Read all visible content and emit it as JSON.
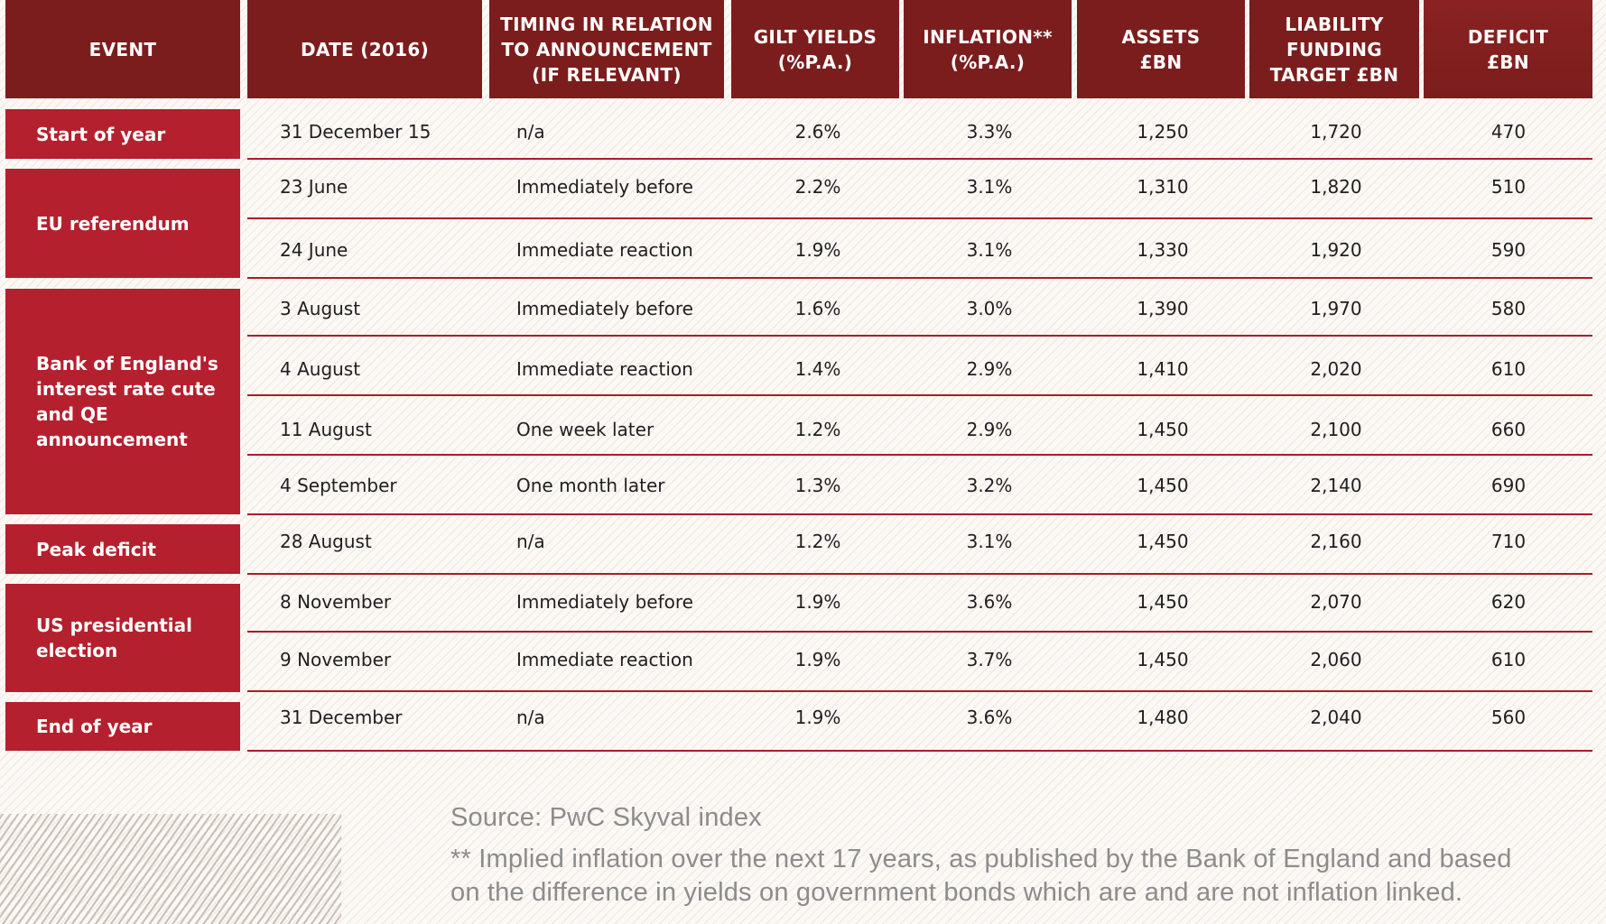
{
  "headers": {
    "event": "EVENT",
    "date": "DATE (2016)",
    "timing": "TIMING IN RELATION\nTO ANNOUNCEMENT\n(IF RELEVANT)",
    "gilt": "GILT YIELDS\n(%P.A.)",
    "inflation": "INFLATION**\n(%P.A.)",
    "assets": "ASSETS\n£BN",
    "liability": "LIABILITY\nFUNDING\nTARGET £BN",
    "deficit": "DEFICIT\n£BN"
  },
  "events": [
    {
      "label": "Start of year"
    },
    {
      "label": "EU referendum"
    },
    {
      "label": "Bank of England's interest rate cute and QE announcement"
    },
    {
      "label": "Peak deficit"
    },
    {
      "label": "US presidential election"
    },
    {
      "label": "End of year"
    }
  ],
  "rows": [
    {
      "date": "31 December 15",
      "timing": "n/a",
      "gilt": "2.6%",
      "inflation": "3.3%",
      "assets": "1,250",
      "liability": "1,720",
      "deficit": "470"
    },
    {
      "date": "23 June",
      "timing": "Immediately before",
      "gilt": "2.2%",
      "inflation": "3.1%",
      "assets": "1,310",
      "liability": "1,820",
      "deficit": "510"
    },
    {
      "date": "24 June",
      "timing": "Immediate reaction",
      "gilt": "1.9%",
      "inflation": "3.1%",
      "assets": "1,330",
      "liability": "1,920",
      "deficit": "590"
    },
    {
      "date": "3 August",
      "timing": "Immediately before",
      "gilt": "1.6%",
      "inflation": "3.0%",
      "assets": "1,390",
      "liability": "1,970",
      "deficit": "580"
    },
    {
      "date": "4 August",
      "timing": "Immediate reaction",
      "gilt": "1.4%",
      "inflation": "2.9%",
      "assets": "1,410",
      "liability": "2,020",
      "deficit": "610"
    },
    {
      "date": "11 August",
      "timing": "One week later",
      "gilt": "1.2%",
      "inflation": "2.9%",
      "assets": "1,450",
      "liability": "2,100",
      "deficit": "660"
    },
    {
      "date": "4 September",
      "timing": "One month later",
      "gilt": "1.3%",
      "inflation": "3.2%",
      "assets": "1,450",
      "liability": "2,140",
      "deficit": "690"
    },
    {
      "date": "28 August",
      "timing": "n/a",
      "gilt": "1.2%",
      "inflation": "3.1%",
      "assets": "1,450",
      "liability": "2,160",
      "deficit": "710"
    },
    {
      "date": "8 November",
      "timing": "Immediately before",
      "gilt": "1.9%",
      "inflation": "3.6%",
      "assets": "1,450",
      "liability": "2,070",
      "deficit": "620"
    },
    {
      "date": "9 November",
      "timing": "Immediate reaction",
      "gilt": "1.9%",
      "inflation": "3.7%",
      "assets": "1,450",
      "liability": "2,060",
      "deficit": "610"
    },
    {
      "date": "31 December",
      "timing": "n/a",
      "gilt": "1.9%",
      "inflation": "3.6%",
      "assets": "1,480",
      "liability": "2,040",
      "deficit": "560"
    }
  ],
  "footer": {
    "source": "Source: PwC Skyval index",
    "footnote": "** Implied inflation over the next 17 years, as published by the Bank of England and based on the difference in yields on government bonds which are and are not inflation linked."
  },
  "colors": {
    "header_bg": "#7c1d1d",
    "event_bg": "#b5202e",
    "rule": "#a51f2b",
    "note_text": "#8c8c8c"
  }
}
